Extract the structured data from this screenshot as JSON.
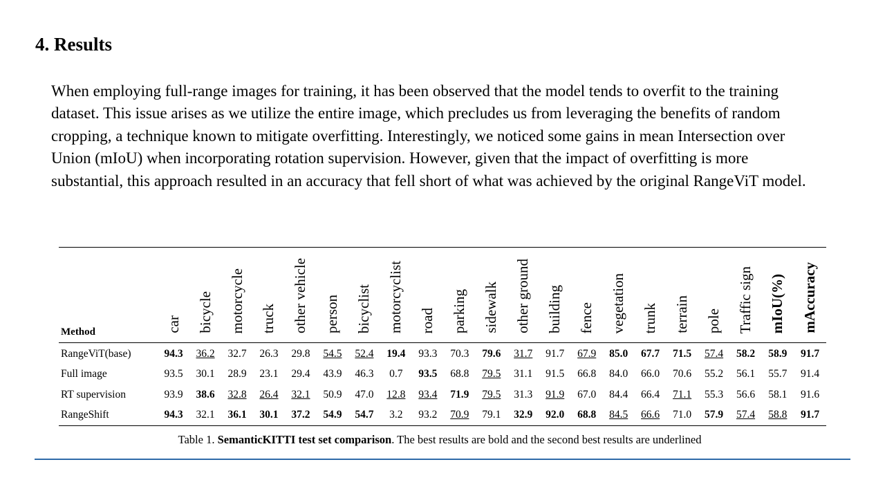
{
  "heading": "4. Results",
  "paragraph": "When employing full-range images for training, it has been observed that the model tends to overfit to the training dataset. This issue arises as we utilize the entire image, which precludes us from leveraging the benefits of random cropping, a technique known to mitigate overfitting. Interestingly, we noticed some gains in mean Intersection over Union (mIoU) when incorporating rotation supervision. However, given that the impact of overfitting is more substantial, this approach resulted in an accuracy that fell short of what was achieved by the original RangeViT model.",
  "table": {
    "method_header": "Method",
    "columns": [
      "car",
      "bicycle",
      "motorcycle",
      "truck",
      "other vehicle",
      "person",
      "bicyclist",
      "motorcyclist",
      "road",
      "parking",
      "sidewalk",
      "other ground",
      "building",
      "fence",
      "vegetation",
      "trunk",
      "terrain",
      "pole",
      "Traffic sign",
      "mIoU(%)",
      "mAccuracy"
    ],
    "bold_columns": [
      19,
      20
    ],
    "rows": [
      {
        "method": "RangeViT(base)",
        "values": [
          "94.3",
          "36.2",
          "32.7",
          "26.3",
          "29.8",
          "54.5",
          "52.4",
          "19.4",
          "93.3",
          "70.3",
          "79.6",
          "31.7",
          "91.7",
          "67.9",
          "85.0",
          "67.7",
          "71.5",
          "57.4",
          "58.2",
          "58.9",
          "91.7"
        ],
        "bold": [
          0,
          7,
          10,
          14,
          15,
          16,
          18,
          19,
          20
        ],
        "underline": [
          1,
          5,
          6,
          11,
          13,
          17
        ]
      },
      {
        "method": "Full image",
        "values": [
          "93.5",
          "30.1",
          "28.9",
          "23.1",
          "29.4",
          "43.9",
          "46.3",
          "0.7",
          "93.5",
          "68.8",
          "79.5",
          "31.1",
          "91.5",
          "66.8",
          "84.0",
          "66.0",
          "70.6",
          "55.2",
          "56.1",
          "55.7",
          "91.4"
        ],
        "bold": [
          8
        ],
        "underline": [
          10
        ]
      },
      {
        "method": "RT supervision",
        "values": [
          "93.9",
          "38.6",
          "32.8",
          "26.4",
          "32.1",
          "50.9",
          "47.0",
          "12.8",
          "93.4",
          "71.9",
          "79.5",
          "31.3",
          "91.9",
          "67.0",
          "84.4",
          "66.4",
          "71.1",
          "55.3",
          "56.6",
          "58.1",
          "91.6"
        ],
        "bold": [
          1,
          9
        ],
        "underline": [
          2,
          3,
          4,
          7,
          8,
          10,
          12,
          16
        ]
      },
      {
        "method": "RangeShift",
        "values": [
          "94.3",
          "32.1",
          "36.1",
          "30.1",
          "37.2",
          "54.9",
          "54.7",
          "3.2",
          "93.2",
          "70.9",
          "79.1",
          "32.9",
          "92.0",
          "68.8",
          "84.5",
          "66.6",
          "71.0",
          "57.9",
          "57.4",
          "58.8",
          "91.7"
        ],
        "bold": [
          0,
          2,
          3,
          4,
          5,
          6,
          11,
          12,
          13,
          17,
          20
        ],
        "underline": [
          9,
          14,
          15,
          18,
          19
        ]
      }
    ]
  },
  "caption": {
    "prefix": "Table 1. ",
    "bold": "SemanticKITTI test set comparison",
    "suffix": ". The best results are bold and the second best results are underlined"
  },
  "colors": {
    "rule": "#2e6aa8"
  }
}
